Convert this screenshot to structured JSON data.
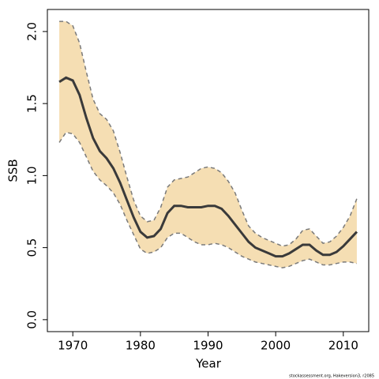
{
  "chart_data": {
    "type": "line",
    "ylabel": "SSB",
    "xlabel": "Year",
    "footnote": "stockassessment.org, Hakeversion3, r2085",
    "x": [
      1968,
      1969,
      1970,
      1971,
      1972,
      1973,
      1974,
      1975,
      1976,
      1977,
      1978,
      1979,
      1980,
      1981,
      1982,
      1983,
      1984,
      1985,
      1986,
      1987,
      1988,
      1989,
      1990,
      1991,
      1992,
      1993,
      1994,
      1995,
      1996,
      1997,
      1998,
      1999,
      2000,
      2001,
      2002,
      2003,
      2004,
      2005,
      2006,
      2007,
      2008,
      2009,
      2010,
      2011,
      2012
    ],
    "values": [
      1.65,
      1.68,
      1.66,
      1.56,
      1.4,
      1.26,
      1.17,
      1.12,
      1.05,
      0.95,
      0.83,
      0.71,
      0.61,
      0.57,
      0.58,
      0.63,
      0.74,
      0.79,
      0.79,
      0.78,
      0.78,
      0.78,
      0.79,
      0.79,
      0.77,
      0.72,
      0.66,
      0.6,
      0.54,
      0.5,
      0.48,
      0.46,
      0.44,
      0.44,
      0.46,
      0.49,
      0.52,
      0.52,
      0.48,
      0.45,
      0.45,
      0.47,
      0.51,
      0.56,
      0.61
    ],
    "upper": [
      2.07,
      2.07,
      2.04,
      1.92,
      1.72,
      1.53,
      1.43,
      1.39,
      1.31,
      1.16,
      0.99,
      0.83,
      0.72,
      0.68,
      0.69,
      0.78,
      0.92,
      0.97,
      0.98,
      0.99,
      1.02,
      1.05,
      1.06,
      1.05,
      1.02,
      0.96,
      0.88,
      0.76,
      0.65,
      0.6,
      0.57,
      0.55,
      0.53,
      0.51,
      0.52,
      0.56,
      0.62,
      0.63,
      0.58,
      0.53,
      0.54,
      0.58,
      0.64,
      0.72,
      0.84
    ],
    "lower": [
      1.23,
      1.3,
      1.29,
      1.23,
      1.13,
      1.03,
      0.97,
      0.93,
      0.88,
      0.8,
      0.69,
      0.59,
      0.49,
      0.46,
      0.47,
      0.5,
      0.57,
      0.6,
      0.6,
      0.57,
      0.54,
      0.52,
      0.52,
      0.53,
      0.52,
      0.5,
      0.47,
      0.44,
      0.42,
      0.4,
      0.39,
      0.38,
      0.37,
      0.36,
      0.37,
      0.39,
      0.41,
      0.42,
      0.4,
      0.38,
      0.38,
      0.39,
      0.4,
      0.4,
      0.39
    ],
    "color": "#3a3a3a",
    "band_color": "#f5deb3",
    "band_edge_color": "#7a7a7a",
    "xlim": [
      1966.24,
      2013.76
    ],
    "ylim": [
      -0.083,
      2.153
    ],
    "xticks": [
      1970,
      1980,
      1990,
      2000,
      2010
    ],
    "yticks": [
      {
        "value": 0,
        "label": "0.0"
      },
      0.5,
      {
        "value": 1,
        "label": "1.0"
      },
      1.5,
      {
        "value": 2,
        "label": "2.0"
      }
    ]
  }
}
